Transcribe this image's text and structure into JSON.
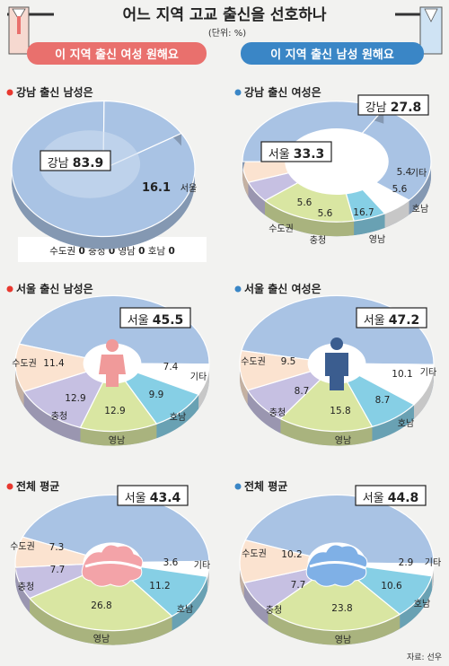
{
  "header": {
    "title": "어느 지역 고교 출신을 선호하나",
    "unit": "(단위: %)",
    "left_banner": "이 지역 출신 여성 원해요",
    "right_banner": "이 지역 출신 남성 원해요"
  },
  "source": "자료: 선우",
  "colors": {
    "pink_banner": "#e9706d",
    "blue_banner": "#3a86c6",
    "pink_bullet": "#e8382f",
    "blue_bullet": "#3a86c6",
    "seoul_gangnam": "#a9c3e4",
    "metro": "#fbe3d0",
    "chungcheong": "#c6c0e2",
    "yeongnam": "#d9e6a2",
    "honam": "#86cfe5",
    "other": "#ffffff"
  },
  "icons": [
    "man-figure-icon",
    "woman-figure-icon",
    "seoul-map-icon"
  ],
  "chart_data": [
    {
      "type": "pie",
      "title": "강남 출신 남성은",
      "slices": [
        {
          "label": "강남",
          "value": 83.9
        },
        {
          "label": "서울",
          "value": 16.1
        }
      ],
      "zero_items": [
        {
          "label": "수도권",
          "value": "0"
        },
        {
          "label": "충청",
          "value": "0"
        },
        {
          "label": "영남",
          "value": "0"
        },
        {
          "label": "호남",
          "value": "0"
        }
      ]
    },
    {
      "type": "pie",
      "title": "강남 출신 여성은",
      "slices": [
        {
          "label": "강남",
          "value": 27.8
        },
        {
          "label": "기타",
          "value": 5.4
        },
        {
          "label": "호남",
          "value": 5.6
        },
        {
          "label": "영남",
          "value": 16.7
        },
        {
          "label": "충청",
          "value": 5.6
        },
        {
          "label": "수도권",
          "value": 5.6
        },
        {
          "label": "서울",
          "value": 33.3
        }
      ]
    },
    {
      "type": "pie",
      "title": "서울 출신 남성은",
      "slices": [
        {
          "label": "서울",
          "value": 45.5
        },
        {
          "label": "기타",
          "value": 7.4
        },
        {
          "label": "호남",
          "value": 9.9
        },
        {
          "label": "영남",
          "value": 12.9
        },
        {
          "label": "충청",
          "value": 12.9
        },
        {
          "label": "수도권",
          "value": 11.4
        }
      ]
    },
    {
      "type": "pie",
      "title": "서울 출신 여성은",
      "slices": [
        {
          "label": "서울",
          "value": 47.2
        },
        {
          "label": "기타",
          "value": 10.1
        },
        {
          "label": "호남",
          "value": 8.7
        },
        {
          "label": "영남",
          "value": 15.8
        },
        {
          "label": "충청",
          "value": 8.7
        },
        {
          "label": "수도권",
          "value": 9.5
        }
      ]
    },
    {
      "type": "pie",
      "title": "전체 평균",
      "slices": [
        {
          "label": "서울",
          "value": 43.4
        },
        {
          "label": "기타",
          "value": 3.6
        },
        {
          "label": "호남",
          "value": 11.2
        },
        {
          "label": "영남",
          "value": 26.8
        },
        {
          "label": "충청",
          "value": 7.7
        },
        {
          "label": "수도권",
          "value": 7.3
        }
      ]
    },
    {
      "type": "pie",
      "title": "전체 평균",
      "slices": [
        {
          "label": "서울",
          "value": 44.8
        },
        {
          "label": "기타",
          "value": 2.9
        },
        {
          "label": "호남",
          "value": 10.6
        },
        {
          "label": "영남",
          "value": 23.8
        },
        {
          "label": "충청",
          "value": 7.7
        },
        {
          "label": "수도권",
          "value": 10.2
        }
      ]
    }
  ]
}
